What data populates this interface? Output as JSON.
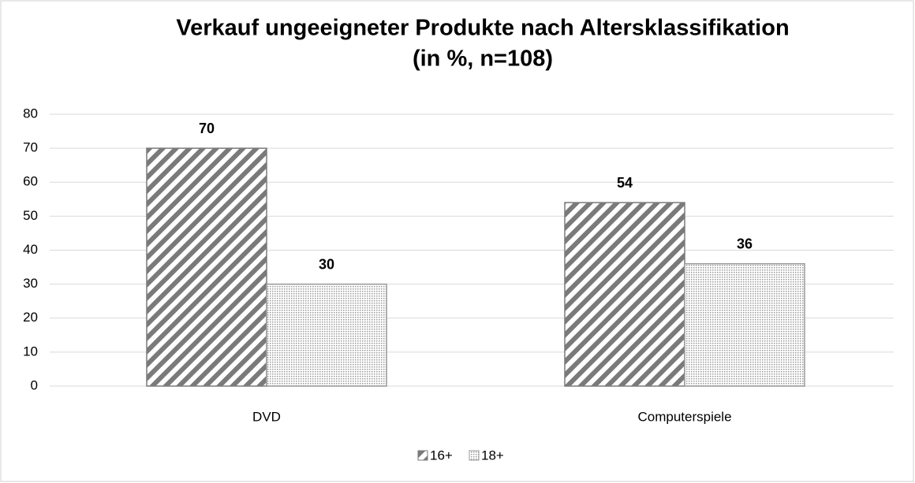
{
  "chart_data": {
    "type": "bar",
    "title": "Verkauf ungeeigneter Produkte nach Altersklassifikation",
    "subtitle": "(in %, n=108)",
    "categories": [
      "DVD",
      "Computerspiele"
    ],
    "series": [
      {
        "name": "16+",
        "color": "#7a7a7a",
        "pattern": "stripes",
        "values": [
          70,
          54
        ]
      },
      {
        "name": "18+",
        "color": "#9a9a9a",
        "pattern": "dots",
        "values": [
          30,
          36
        ]
      }
    ],
    "ylim": [
      0,
      80
    ],
    "yticks": [
      0,
      10,
      20,
      30,
      40,
      50,
      60,
      70,
      80
    ],
    "grid": true,
    "legend": "bottom"
  }
}
